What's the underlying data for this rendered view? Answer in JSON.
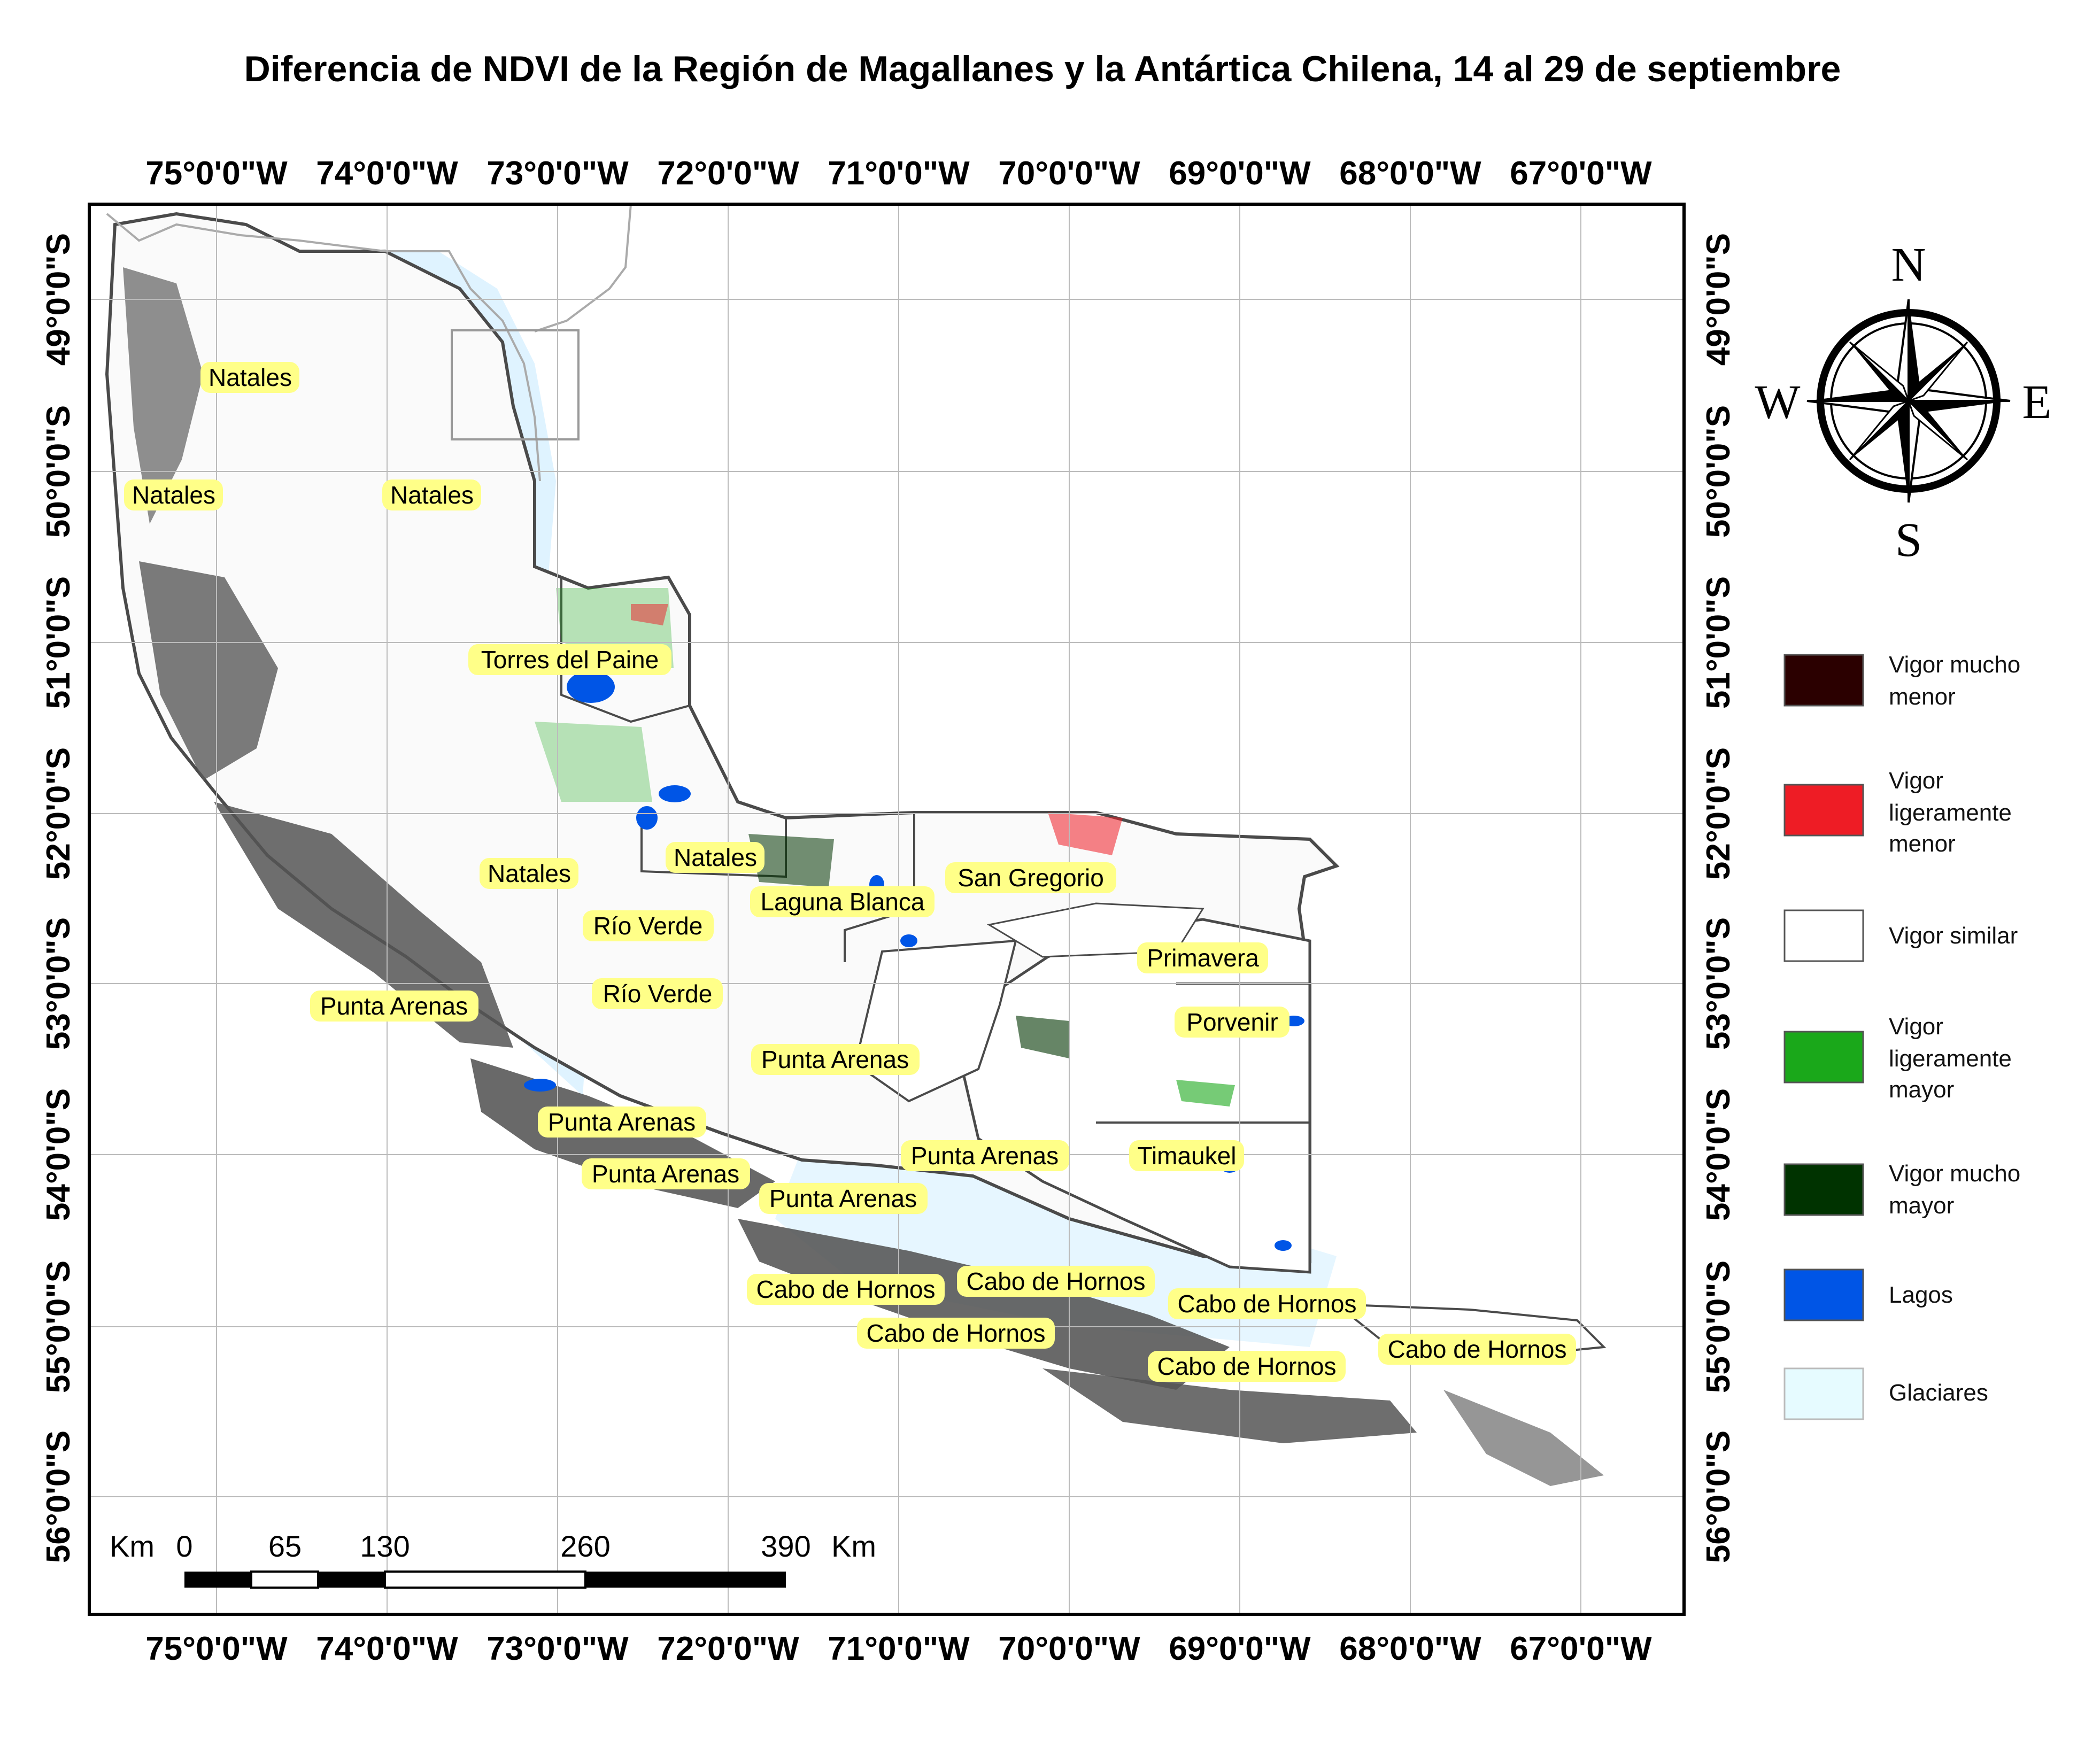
{
  "title": "Diferencia de NDVI de la Región de Magallanes y la Antártica Chilena, 14 al 29 de septiembre",
  "longitude_labels": [
    "75°0'0\"W",
    "74°0'0\"W",
    "73°0'0\"W",
    "72°0'0\"W",
    "71°0'0\"W",
    "70°0'0\"W",
    "69°0'0\"W",
    "68°0'0\"W",
    "67°0'0\"W"
  ],
  "latitude_labels": [
    "49°0'0\"S",
    "50°0'0\"S",
    "51°0'0\"S",
    "52°0'0\"S",
    "53°0'0\"S",
    "54°0'0\"S",
    "55°0'0\"S",
    "56°0'0\"S"
  ],
  "places": {
    "natales_1": "Natales",
    "natales_2": "Natales",
    "natales_3": "Natales",
    "torres": "Torres del Paine",
    "natales_4": "Natales",
    "natales_5": "Natales",
    "laguna_blanca": "Laguna Blanca",
    "san_gregorio": "San Gregorio",
    "rio_verde_1": "Río Verde",
    "rio_verde_2": "Río Verde",
    "primavera": "Primavera",
    "punta_arenas_1": "Punta Arenas",
    "porvenir": "Porvenir",
    "punta_arenas_2": "Punta Arenas",
    "punta_arenas_3": "Punta Arenas",
    "punta_arenas_4": "Punta Arenas",
    "timaukel": "Timaukel",
    "punta_arenas_5": "Punta Arenas",
    "punta_arenas_6": "Punta Arenas",
    "cabo_1": "Cabo de Hornos",
    "cabo_2": "Cabo de Hornos",
    "cabo_3": "Cabo de Hornos",
    "cabo_4": "Cabo de Hornos",
    "cabo_5": "Cabo de Hornos",
    "cabo_6": "Cabo de Hornos"
  },
  "compass": {
    "n": "N",
    "s": "S",
    "e": "E",
    "w": "W"
  },
  "legend": [
    {
      "line1": "Vigor mucho",
      "line2": "menor",
      "line3": "",
      "color": "#2b0000"
    },
    {
      "line1": "Vigor",
      "line2": "ligeramente",
      "line3": "menor",
      "color": "#ee1c25"
    },
    {
      "line1": "Vigor similar",
      "line2": "",
      "line3": "",
      "color": "#ffffff"
    },
    {
      "line1": "Vigor",
      "line2": "ligeramente",
      "line3": "mayor",
      "color": "#1aa81a"
    },
    {
      "line1": "Vigor mucho",
      "line2": "mayor",
      "line3": "",
      "color": "#003300"
    },
    {
      "line1": "Lagos",
      "line2": "",
      "line3": "",
      "color": "#0055e6"
    },
    {
      "line1": "Glaciares",
      "line2": "",
      "line3": "",
      "color": "#e6fbff"
    }
  ],
  "scale_bar": {
    "unit_left": "Km",
    "ticks": [
      "0",
      "65",
      "130",
      "260",
      "390"
    ],
    "unit_right": "Km"
  },
  "colors": {
    "coast": "#4a4a4a",
    "glacier_tint": "#d6ecff",
    "label_bg": "#ffff88",
    "grid": "#bbbbbb"
  }
}
